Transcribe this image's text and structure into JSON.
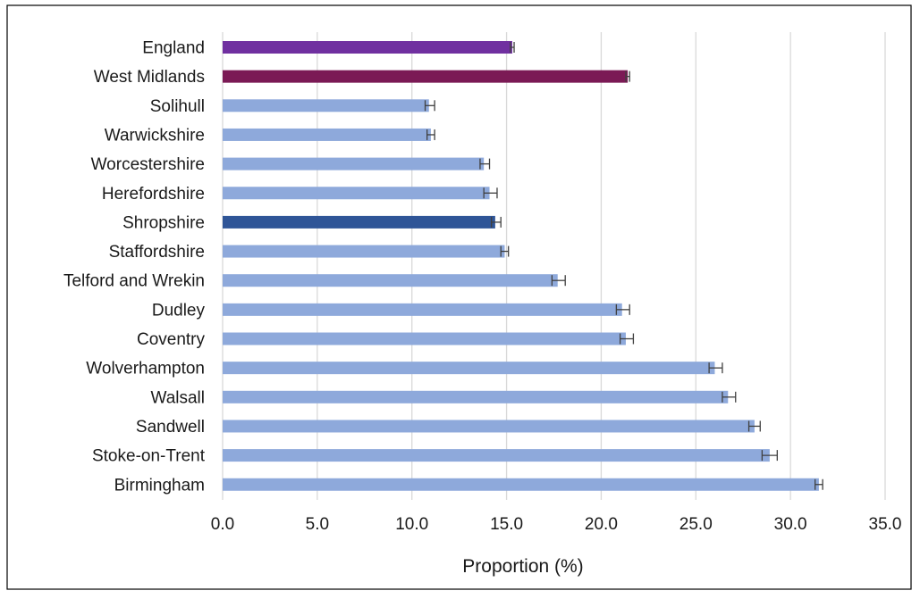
{
  "chart_data": {
    "type": "bar",
    "orientation": "horizontal",
    "xlabel": "Proportion (%)",
    "xlim": [
      0,
      35
    ],
    "x_ticks": [
      0,
      5,
      10,
      15,
      20,
      25,
      30,
      35
    ],
    "x_tick_labels": [
      "0.0",
      "5.0",
      "10.0",
      "15.0",
      "20.0",
      "25.0",
      "30.0",
      "35.0"
    ],
    "grid": "vertical",
    "error_bars": true,
    "categories": [
      "England",
      "West Midlands",
      "Solihull",
      "Warwickshire",
      "Worcestershire",
      "Herefordshire",
      "Shropshire",
      "Staffordshire",
      "Telford and Wrekin",
      "Dudley",
      "Coventry",
      "Wolverhampton",
      "Walsall",
      "Sandwell",
      "Stoke-on-Trent",
      "Birmingham"
    ],
    "values": [
      15.3,
      21.4,
      10.9,
      11.0,
      13.8,
      14.1,
      14.4,
      14.9,
      17.7,
      21.1,
      21.3,
      26.0,
      26.7,
      28.1,
      28.9,
      31.5
    ],
    "error_low": [
      15.2,
      21.3,
      10.7,
      10.8,
      13.6,
      13.8,
      14.2,
      14.7,
      17.4,
      20.8,
      21.0,
      25.7,
      26.4,
      27.8,
      28.5,
      31.3
    ],
    "error_high": [
      15.4,
      21.5,
      11.2,
      11.2,
      14.1,
      14.5,
      14.7,
      15.1,
      18.1,
      21.5,
      21.7,
      26.4,
      27.1,
      28.4,
      29.3,
      31.7
    ],
    "colors": {
      "England": "#7030A0",
      "West Midlands": "#7B1A55",
      "Shropshire": "#2F5597",
      "default": "#8EA9DB",
      "error_bar": "#404040",
      "grid": "#D9D9D9",
      "frame": "#000000"
    }
  }
}
